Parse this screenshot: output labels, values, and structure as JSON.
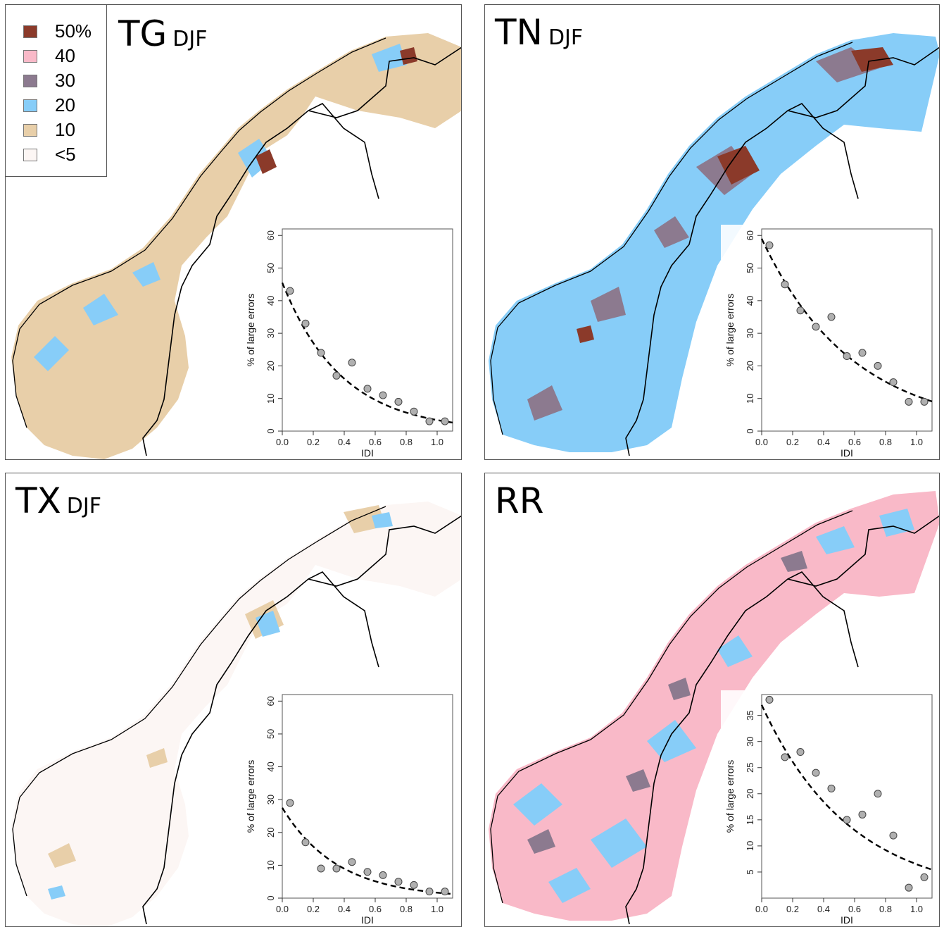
{
  "colors": {
    "c50": "#8b3a2a",
    "c40": "#f9b9c8",
    "c30": "#8c7a8f",
    "c20": "#87cdf8",
    "c10": "#e8cfa9",
    "c5": "#fcf6f4",
    "border": "#000000"
  },
  "legend": {
    "items": [
      {
        "label": "50%",
        "color": "#8b3a2a"
      },
      {
        "label": "40",
        "color": "#f9b9c8"
      },
      {
        "label": "30",
        "color": "#8c7a8f"
      },
      {
        "label": "20",
        "color": "#87cdf8"
      },
      {
        "label": "10",
        "color": "#e8cfa9"
      },
      {
        "label": "<5",
        "color": "#fcf6f4"
      }
    ]
  },
  "panels": [
    {
      "variable": "TG",
      "season": "DJF",
      "fill": "#e8cfa9",
      "overlay": "#87cdf8",
      "hot": "#8b3a2a"
    },
    {
      "variable": "TN",
      "season": "DJF",
      "fill": "#87cdf8",
      "overlay": "#8c7a8f",
      "hot": "#8b3a2a"
    },
    {
      "variable": "TX",
      "season": "DJF",
      "fill": "#fcf6f4",
      "overlay": "#e8cfa9",
      "hot": "#87cdf8"
    },
    {
      "variable": "RR",
      "season": "",
      "fill": "#f9b9c8",
      "overlay": "#87cdf8",
      "hot": "#8c7a8f"
    }
  ],
  "chart_data": [
    {
      "type": "scatter",
      "panel": "TG DJF",
      "xlabel": "IDI",
      "ylabel": "% of large errors",
      "xlim": [
        0,
        1.1
      ],
      "ylim": [
        0,
        62
      ],
      "xticks": [
        "0.0",
        "0.2",
        "0.4",
        "0.6",
        "0.8",
        "1.0"
      ],
      "yticks": [
        "0",
        "10",
        "20",
        "30",
        "40",
        "50",
        "60"
      ],
      "points": [
        [
          0.05,
          43
        ],
        [
          0.15,
          33
        ],
        [
          0.25,
          24
        ],
        [
          0.35,
          17
        ],
        [
          0.45,
          21
        ],
        [
          0.55,
          13
        ],
        [
          0.65,
          11
        ],
        [
          0.75,
          9
        ],
        [
          0.85,
          6
        ],
        [
          0.95,
          3
        ],
        [
          1.05,
          3
        ]
      ],
      "fit": {
        "style": "dashed",
        "a": 45.5,
        "b": 2.6
      }
    },
    {
      "type": "scatter",
      "panel": "TN DJF",
      "xlabel": "IDI",
      "ylabel": "% of large errors",
      "xlim": [
        0,
        1.1
      ],
      "ylim": [
        0,
        62
      ],
      "xticks": [
        "0.0",
        "0.2",
        "0.4",
        "0.6",
        "0.8",
        "1.0"
      ],
      "yticks": [
        "0",
        "10",
        "20",
        "30",
        "40",
        "50",
        "60"
      ],
      "points": [
        [
          0.05,
          57
        ],
        [
          0.15,
          45
        ],
        [
          0.25,
          37
        ],
        [
          0.35,
          32
        ],
        [
          0.45,
          35
        ],
        [
          0.55,
          23
        ],
        [
          0.65,
          24
        ],
        [
          0.75,
          20
        ],
        [
          0.85,
          15
        ],
        [
          0.95,
          9
        ],
        [
          1.05,
          9
        ]
      ],
      "fit": {
        "style": "dashed",
        "a": 59,
        "b": 1.7
      }
    },
    {
      "type": "scatter",
      "panel": "TX DJF",
      "xlabel": "IDI",
      "ylabel": "% of large errors",
      "xlim": [
        0,
        1.1
      ],
      "ylim": [
        0,
        62
      ],
      "xticks": [
        "0.0",
        "0.2",
        "0.4",
        "0.6",
        "0.8",
        "1.0"
      ],
      "yticks": [
        "0",
        "10",
        "20",
        "30",
        "40",
        "50",
        "60"
      ],
      "points": [
        [
          0.05,
          29
        ],
        [
          0.15,
          17
        ],
        [
          0.25,
          9
        ],
        [
          0.35,
          9
        ],
        [
          0.45,
          11
        ],
        [
          0.55,
          8
        ],
        [
          0.65,
          7
        ],
        [
          0.75,
          5
        ],
        [
          0.85,
          4
        ],
        [
          0.95,
          2
        ],
        [
          1.05,
          2
        ]
      ],
      "fit": {
        "style": "dashed",
        "a": 27.5,
        "b": 2.8
      }
    },
    {
      "type": "scatter",
      "panel": "RR",
      "xlabel": "IDI",
      "ylabel": "% of large errors",
      "xlim": [
        0,
        1.1
      ],
      "ylim": [
        0,
        39
      ],
      "xticks": [
        "0.0",
        "0.2",
        "0.4",
        "0.6",
        "0.8",
        "1.0"
      ],
      "yticks": [
        "5",
        "10",
        "15",
        "20",
        "25",
        "30",
        "35"
      ],
      "points": [
        [
          0.05,
          38
        ],
        [
          0.15,
          27
        ],
        [
          0.25,
          28
        ],
        [
          0.35,
          24
        ],
        [
          0.45,
          21
        ],
        [
          0.55,
          15
        ],
        [
          0.65,
          16
        ],
        [
          0.75,
          20
        ],
        [
          0.85,
          12
        ],
        [
          0.95,
          2
        ],
        [
          1.05,
          4
        ]
      ],
      "fit": {
        "style": "dashed",
        "a": 37,
        "b": 1.74
      }
    }
  ]
}
